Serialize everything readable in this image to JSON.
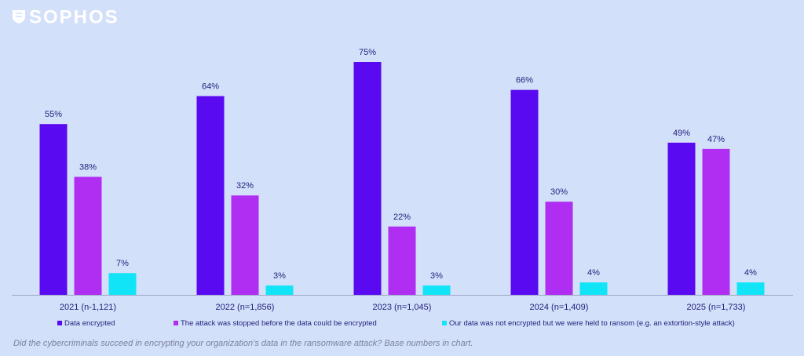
{
  "brand": "SOPHOS",
  "chart_data": {
    "type": "bar",
    "categories": [
      "2021 (n-1,121)",
      "2022 (n=1,856)",
      "2023 (n=1,045)",
      "2024 (n=1,409)",
      "2025 (n=1,733)"
    ],
    "series": [
      {
        "name": "Data encrypted",
        "color": "#5a0af0",
        "values": [
          55,
          64,
          75,
          66,
          49
        ],
        "value_labels": [
          "55%",
          "64%",
          "75%",
          "66%",
          "49%"
        ]
      },
      {
        "name": "The attack was stopped before the data could be encrypted",
        "color": "#b02ef2",
        "values": [
          38,
          32,
          22,
          30,
          47
        ],
        "value_labels": [
          "38%",
          "32%",
          "22%",
          "30%",
          "47%"
        ]
      },
      {
        "name": "Our data was not encrypted but we were held to ransom (e.g. an extortion-style attack)",
        "color": "#12e4f8",
        "values": [
          7,
          3,
          3,
          4,
          4
        ],
        "value_labels": [
          "7%",
          "3%",
          "3%",
          "4%",
          "4%"
        ]
      }
    ],
    "footnote": "Did the cybercriminals succeed in encrypting your organization’s data in the ransomware attack?  Base numbers in chart."
  }
}
